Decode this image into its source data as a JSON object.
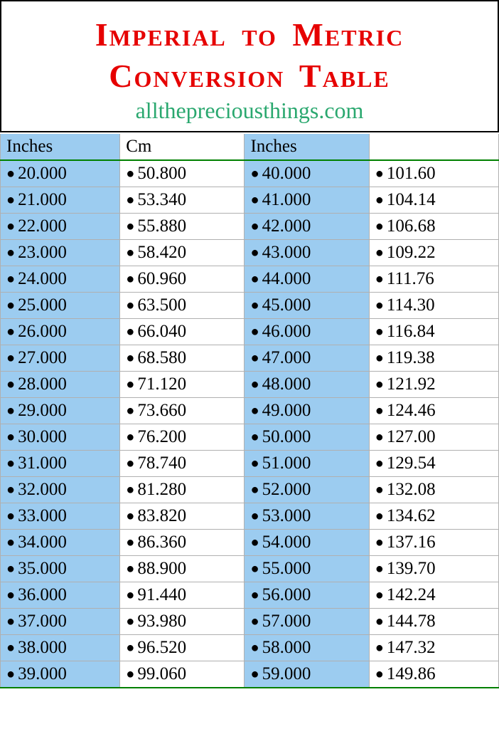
{
  "header": {
    "title_line1": "Imperial to Metric",
    "title_line2": "Conversion Table",
    "title_color": "#e60000",
    "subtitle": "allthepreciousthings.com",
    "subtitle_color": "#2aa86f",
    "border_color": "#000000"
  },
  "table": {
    "header_underline_color": "#008000",
    "bottom_border_color": "#008000",
    "cell_border_color": "#b0b0b0",
    "text_color": "#000000",
    "bullet": "●",
    "columns": [
      {
        "label": "Inches",
        "bg": "#9cccf0",
        "width_pct": 24
      },
      {
        "label": "Cm",
        "bg": "#ffffff",
        "width_pct": 25
      },
      {
        "label": "Inches",
        "bg": "#9cccf0",
        "width_pct": 25
      },
      {
        "label": "",
        "bg": "#ffffff",
        "width_pct": 26
      }
    ],
    "rows": [
      [
        "20.000",
        "50.800",
        "40.000",
        "101.60"
      ],
      [
        "21.000",
        "53.340",
        "41.000",
        "104.14"
      ],
      [
        "22.000",
        "55.880",
        "42.000",
        "106.68"
      ],
      [
        "23.000",
        "58.420",
        "43.000",
        "109.22"
      ],
      [
        "24.000",
        "60.960",
        "44.000",
        "111.76"
      ],
      [
        "25.000",
        "63.500",
        "45.000",
        "114.30"
      ],
      [
        "26.000",
        "66.040",
        "46.000",
        "116.84"
      ],
      [
        "27.000",
        "68.580",
        "47.000",
        "119.38"
      ],
      [
        "28.000",
        "71.120",
        "48.000",
        "121.92"
      ],
      [
        "29.000",
        "73.660",
        "49.000",
        "124.46"
      ],
      [
        "30.000",
        "76.200",
        "50.000",
        "127.00"
      ],
      [
        "31.000",
        "78.740",
        "51.000",
        "129.54"
      ],
      [
        "32.000",
        "81.280",
        "52.000",
        "132.08"
      ],
      [
        "33.000",
        "83.820",
        "53.000",
        "134.62"
      ],
      [
        "34.000",
        "86.360",
        "54.000",
        "137.16"
      ],
      [
        "35.000",
        "88.900",
        "55.000",
        "139.70"
      ],
      [
        "36.000",
        "91.440",
        "56.000",
        "142.24"
      ],
      [
        "37.000",
        "93.980",
        "57.000",
        "144.78"
      ],
      [
        "38.000",
        "96.520",
        "58.000",
        "147.32"
      ],
      [
        "39.000",
        "99.060",
        "59.000",
        "149.86"
      ]
    ]
  }
}
